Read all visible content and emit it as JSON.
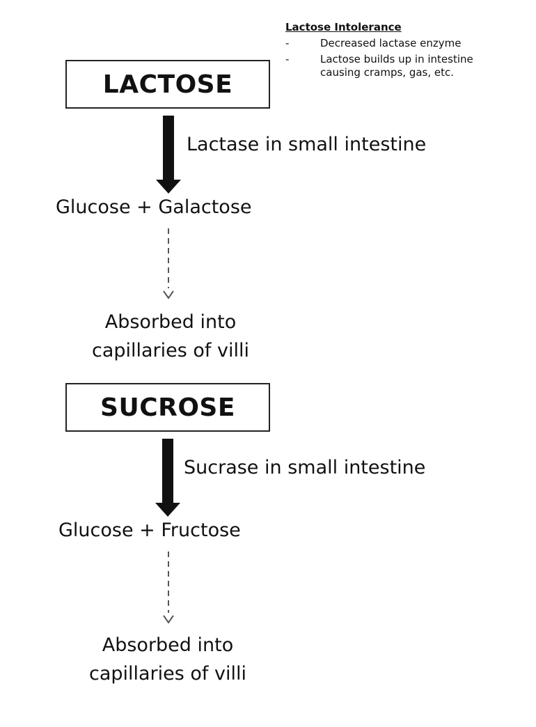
{
  "note": {
    "title": "Lactose Intolerance",
    "items": [
      {
        "dash": "-",
        "text": "Decreased lactase enzyme"
      },
      {
        "dash": "-",
        "text": "Lactose builds up in intestine causing cramps, gas, etc."
      }
    ]
  },
  "lactose": {
    "box": "LACTOSE",
    "enzyme": "Lactase in small intestine",
    "products": "Glucose + Galactose",
    "absorb_line1": "Absorbed into",
    "absorb_line2": "capillaries of villi"
  },
  "sucrose": {
    "box": "SUCROSE",
    "enzyme": "Sucrase in small intestine",
    "products": "Glucose + Fructose",
    "absorb_line1": "Absorbed into",
    "absorb_line2": "capillaries of villi"
  },
  "colors": {
    "line": "#111111",
    "dashed": "#555555"
  }
}
